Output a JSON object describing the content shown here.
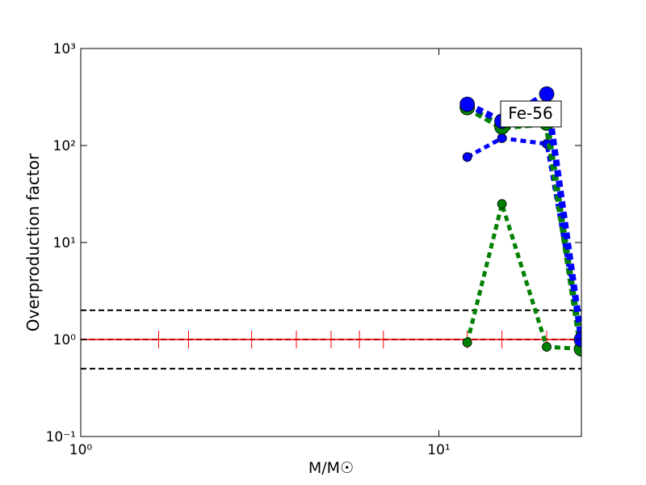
{
  "chart_data": {
    "type": "line",
    "xlabel": "M/M☉",
    "ylabel": "Overproduction factor",
    "xscale": "log",
    "yscale": "log",
    "xlim": [
      1,
      25
    ],
    "ylim": [
      0.1,
      1000
    ],
    "xticks": [
      {
        "value": 1,
        "label": "10⁰"
      },
      {
        "value": 10,
        "label": "10¹"
      }
    ],
    "yticks": [
      {
        "value": 0.1,
        "label": "10⁻¹"
      },
      {
        "value": 1,
        "label": "10⁰"
      },
      {
        "value": 10,
        "label": "10¹"
      },
      {
        "value": 100,
        "label": "10²"
      },
      {
        "value": 1000,
        "label": "10³"
      }
    ],
    "hlines": [
      {
        "value": 2,
        "color": "#000000"
      },
      {
        "value": 1,
        "color": "#000000"
      },
      {
        "value": 0.5,
        "color": "#000000"
      }
    ],
    "reference": {
      "color": "#ff0000",
      "x": [
        1.65,
        2,
        3,
        4,
        5,
        6,
        7,
        12,
        15,
        20
      ],
      "values": [
        1,
        1,
        1,
        1,
        1,
        1,
        1,
        1,
        1,
        1
      ]
    },
    "series": [
      {
        "color": "#008000",
        "width": "thin",
        "x": [
          12,
          15,
          20,
          25
        ],
        "values": [
          0.93,
          25,
          0.84,
          0.8
        ]
      },
      {
        "color": "#0000ff",
        "width": "thin",
        "x": [
          12,
          15,
          20,
          25
        ],
        "values": [
          76,
          119,
          104,
          1.0
        ]
      },
      {
        "color": "#008000",
        "width": "thick",
        "x": [
          12,
          15,
          20,
          25
        ],
        "values": [
          246,
          155,
          170,
          0.8
        ]
      },
      {
        "color": "#0000ff",
        "width": "thick",
        "x": [
          12,
          15,
          20,
          25
        ],
        "values": [
          266,
          178,
          340,
          1.0
        ]
      }
    ],
    "annotation": "Fe-56"
  }
}
